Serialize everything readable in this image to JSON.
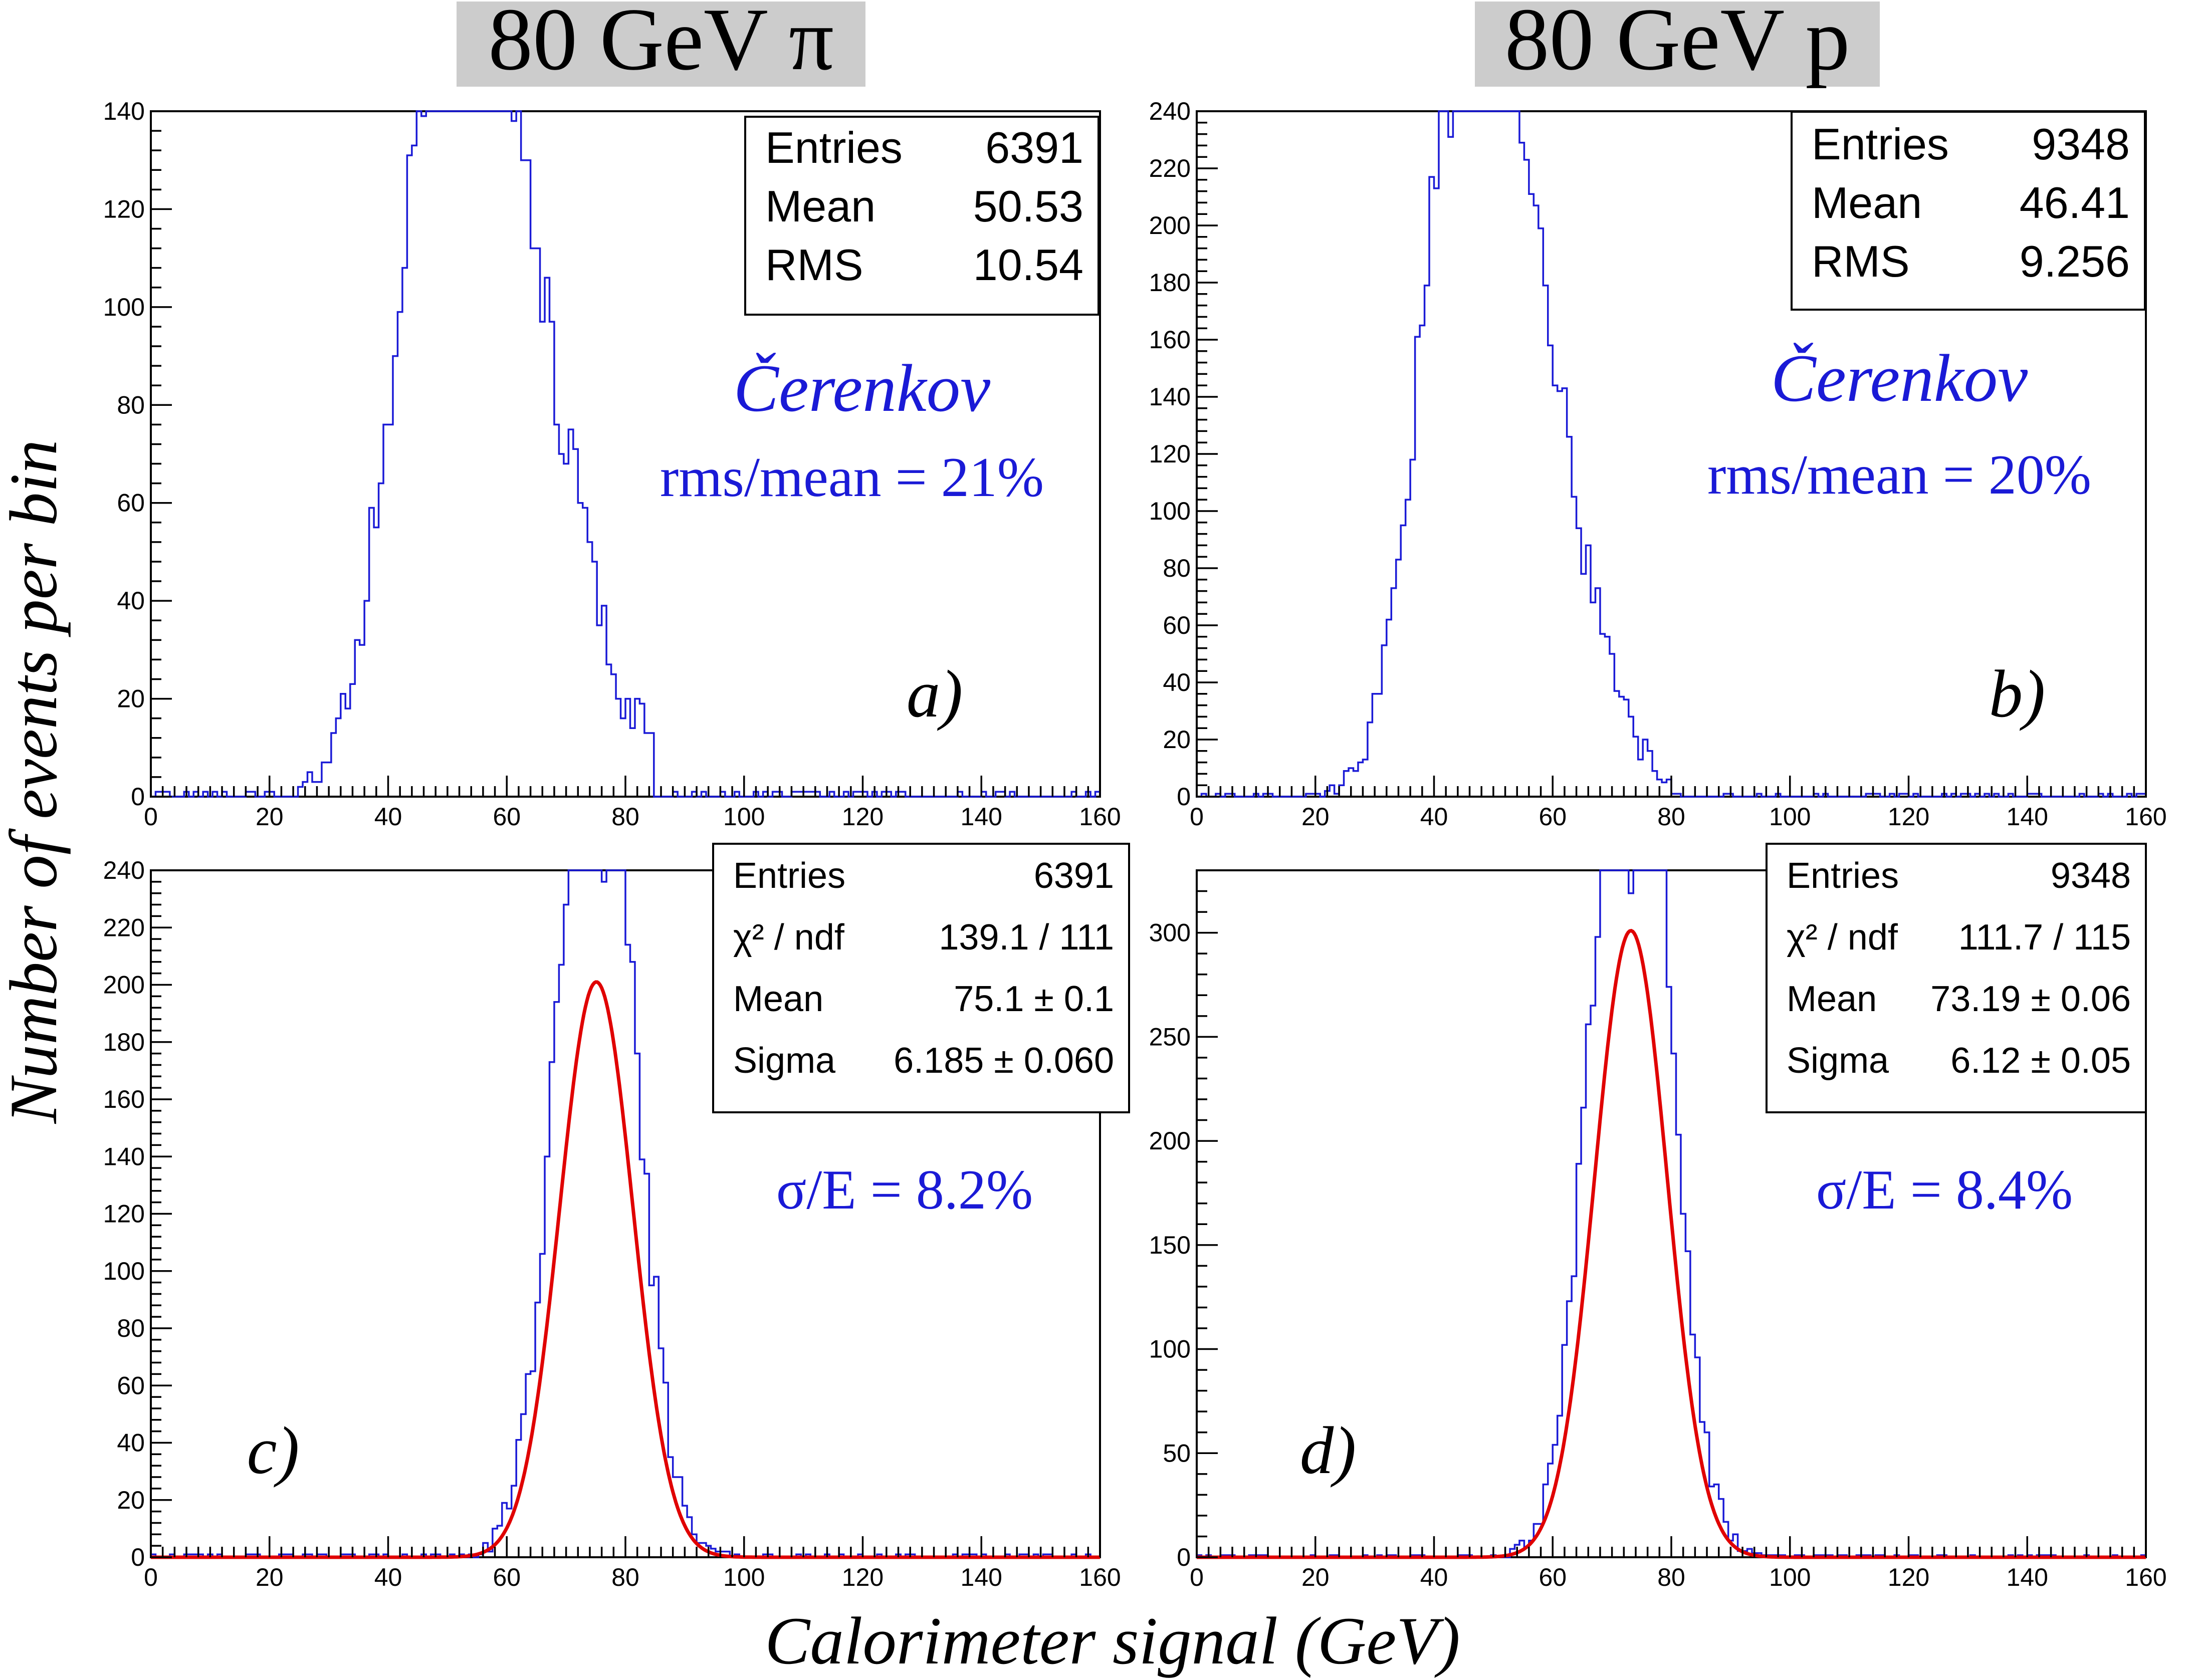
{
  "titles": {
    "left": "80 GeV π",
    "right": "80 GeV p"
  },
  "axes": {
    "ylabel": "Number of events per bin",
    "xlabel": "Calorimeter signal (GeV)"
  },
  "colors": {
    "histogram": "#1a1ad6",
    "fit": "#e00000",
    "annotation": "#1a1ad6",
    "title_box": "#cccccc"
  },
  "chart_data": [
    {
      "id": "a",
      "type": "histogram",
      "panel_label": "a)",
      "xlim": [
        0,
        160
      ],
      "ylim": [
        0,
        140
      ],
      "xticks": [
        0,
        20,
        40,
        60,
        80,
        100,
        120,
        140,
        160
      ],
      "yticks": [
        0,
        20,
        40,
        60,
        80,
        100,
        120,
        140
      ],
      "bin_width": 0.8,
      "stats": [
        [
          "Entries",
          "6391"
        ],
        [
          "Mean",
          "50.53"
        ],
        [
          "RMS",
          "10.54"
        ]
      ],
      "annotations": [
        "Čerenkov",
        "rms/mean = 21%"
      ],
      "dist": {
        "entries": 6391,
        "mean": 50.53,
        "rms": 10.54,
        "skew": 0.35,
        "start": 25,
        "end": 85,
        "peak": 139,
        "peak_x": 46,
        "tail": 0.8
      },
      "fit": null
    },
    {
      "id": "b",
      "type": "histogram",
      "panel_label": "b)",
      "xlim": [
        0,
        160
      ],
      "ylim": [
        0,
        240
      ],
      "xticks": [
        0,
        20,
        40,
        60,
        80,
        100,
        120,
        140,
        160
      ],
      "yticks": [
        0,
        20,
        40,
        60,
        80,
        100,
        120,
        140,
        160,
        180,
        200,
        220,
        240
      ],
      "bin_width": 0.8,
      "stats": [
        [
          "Entries",
          "9348"
        ],
        [
          "Mean",
          "46.41"
        ],
        [
          "RMS",
          "9.256"
        ]
      ],
      "annotations": [
        "Čerenkov",
        "rms/mean = 20%"
      ],
      "dist": {
        "entries": 9348,
        "mean": 46.41,
        "rms": 9.256,
        "skew": 0.3,
        "start": 22,
        "end": 80,
        "peak": 231,
        "peak_x": 43,
        "tail": 0.8
      },
      "fit": null
    },
    {
      "id": "c",
      "type": "histogram",
      "panel_label": "c)",
      "xlim": [
        0,
        160
      ],
      "ylim": [
        0,
        240
      ],
      "xticks": [
        0,
        20,
        40,
        60,
        80,
        100,
        120,
        140,
        160
      ],
      "yticks": [
        0,
        20,
        40,
        60,
        80,
        100,
        120,
        140,
        160,
        180,
        200,
        220,
        240
      ],
      "bin_width": 0.8,
      "stats": [
        [
          "Entries",
          "6391"
        ],
        [
          "χ² / ndf",
          "139.1 / 111"
        ],
        [
          "Mean",
          "75.1 ± 0.1"
        ],
        [
          "Sigma",
          "6.185 ± 0.060"
        ]
      ],
      "annotations": [
        "σ/E = 8.2%"
      ],
      "dist": {
        "entries": 6391,
        "mean": 75.1,
        "rms": 6.185,
        "skew": 0.0,
        "start": 55,
        "end": 100,
        "peak": 236,
        "peak_x": 76,
        "tail": 1.0
      },
      "fit": {
        "type": "gaussian",
        "amplitude": 201,
        "mean": 75.1,
        "sigma": 6.185
      }
    },
    {
      "id": "d",
      "type": "histogram",
      "panel_label": "d)",
      "xlim": [
        0,
        160
      ],
      "ylim": [
        0,
        330
      ],
      "xticks": [
        0,
        20,
        40,
        60,
        80,
        100,
        120,
        140,
        160
      ],
      "yticks": [
        0,
        50,
        100,
        150,
        200,
        250,
        300
      ],
      "bin_width": 0.8,
      "stats": [
        [
          "Entries",
          "9348"
        ],
        [
          "χ² / ndf",
          "111.7 / 115"
        ],
        [
          "Mean",
          "73.19 ± 0.06"
        ],
        [
          "Sigma",
          "6.12 ± 0.05"
        ]
      ],
      "annotations": [
        "σ/E = 8.4%"
      ],
      "dist": {
        "entries": 9348,
        "mean": 73.19,
        "rms": 6.12,
        "skew": 0.0,
        "start": 50,
        "end": 98,
        "peak": 319,
        "peak_x": 73,
        "tail": 1.0
      },
      "fit": {
        "type": "gaussian",
        "amplitude": 301,
        "mean": 73.19,
        "sigma": 6.12
      }
    }
  ]
}
